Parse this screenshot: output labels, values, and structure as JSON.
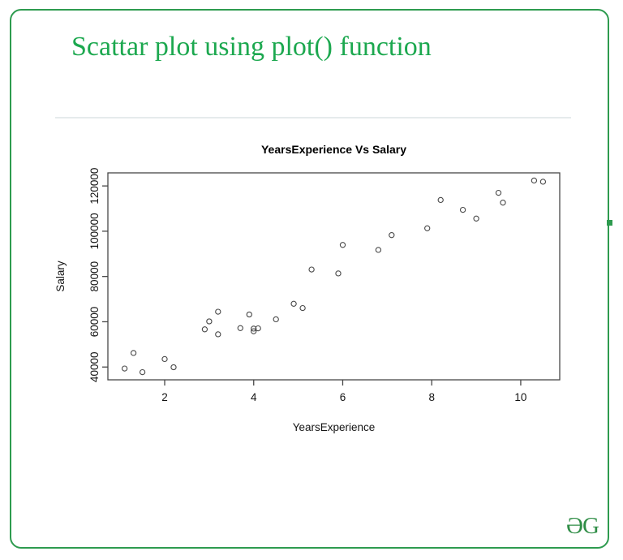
{
  "page": {
    "heading": "Scattar plot using plot() function",
    "logo_text": "ƏG"
  },
  "colors": {
    "border_green": "#2e9b4f",
    "heading_green": "#1ca84f",
    "logo_green": "#2f8d46",
    "divider": "#e6ebec",
    "axis": "#474747",
    "point_stroke": "#474747",
    "chart_text": "#141414"
  },
  "chart_data": {
    "type": "scatter",
    "title": "YearsExperience Vs Salary",
    "xlabel": "YearsExperience",
    "ylabel": "Salary",
    "marker": "open-circle",
    "legend": "none",
    "grid": false,
    "xlim": [
      0.724,
      10.876
    ],
    "ylim": [
      34345,
      125777
    ],
    "xticks": [
      2,
      4,
      6,
      8,
      10
    ],
    "yticks": [
      40000,
      60000,
      80000,
      100000,
      120000
    ],
    "x": [
      1.1,
      1.3,
      1.5,
      2.0,
      2.2,
      2.9,
      3.0,
      3.2,
      3.2,
      3.7,
      3.9,
      4.0,
      4.0,
      4.1,
      4.5,
      4.9,
      5.1,
      5.3,
      5.9,
      6.0,
      6.8,
      7.1,
      7.9,
      8.2,
      8.7,
      9.0,
      9.5,
      9.6,
      10.3,
      10.5
    ],
    "y": [
      39343,
      46205,
      37731,
      43525,
      39891,
      56642,
      60150,
      54445,
      64445,
      57189,
      63218,
      55794,
      56957,
      57081,
      61111,
      67938,
      66029,
      83088,
      81363,
      93940,
      91738,
      98273,
      101302,
      113812,
      109431,
      105582,
      116969,
      112635,
      122391,
      121872
    ]
  }
}
